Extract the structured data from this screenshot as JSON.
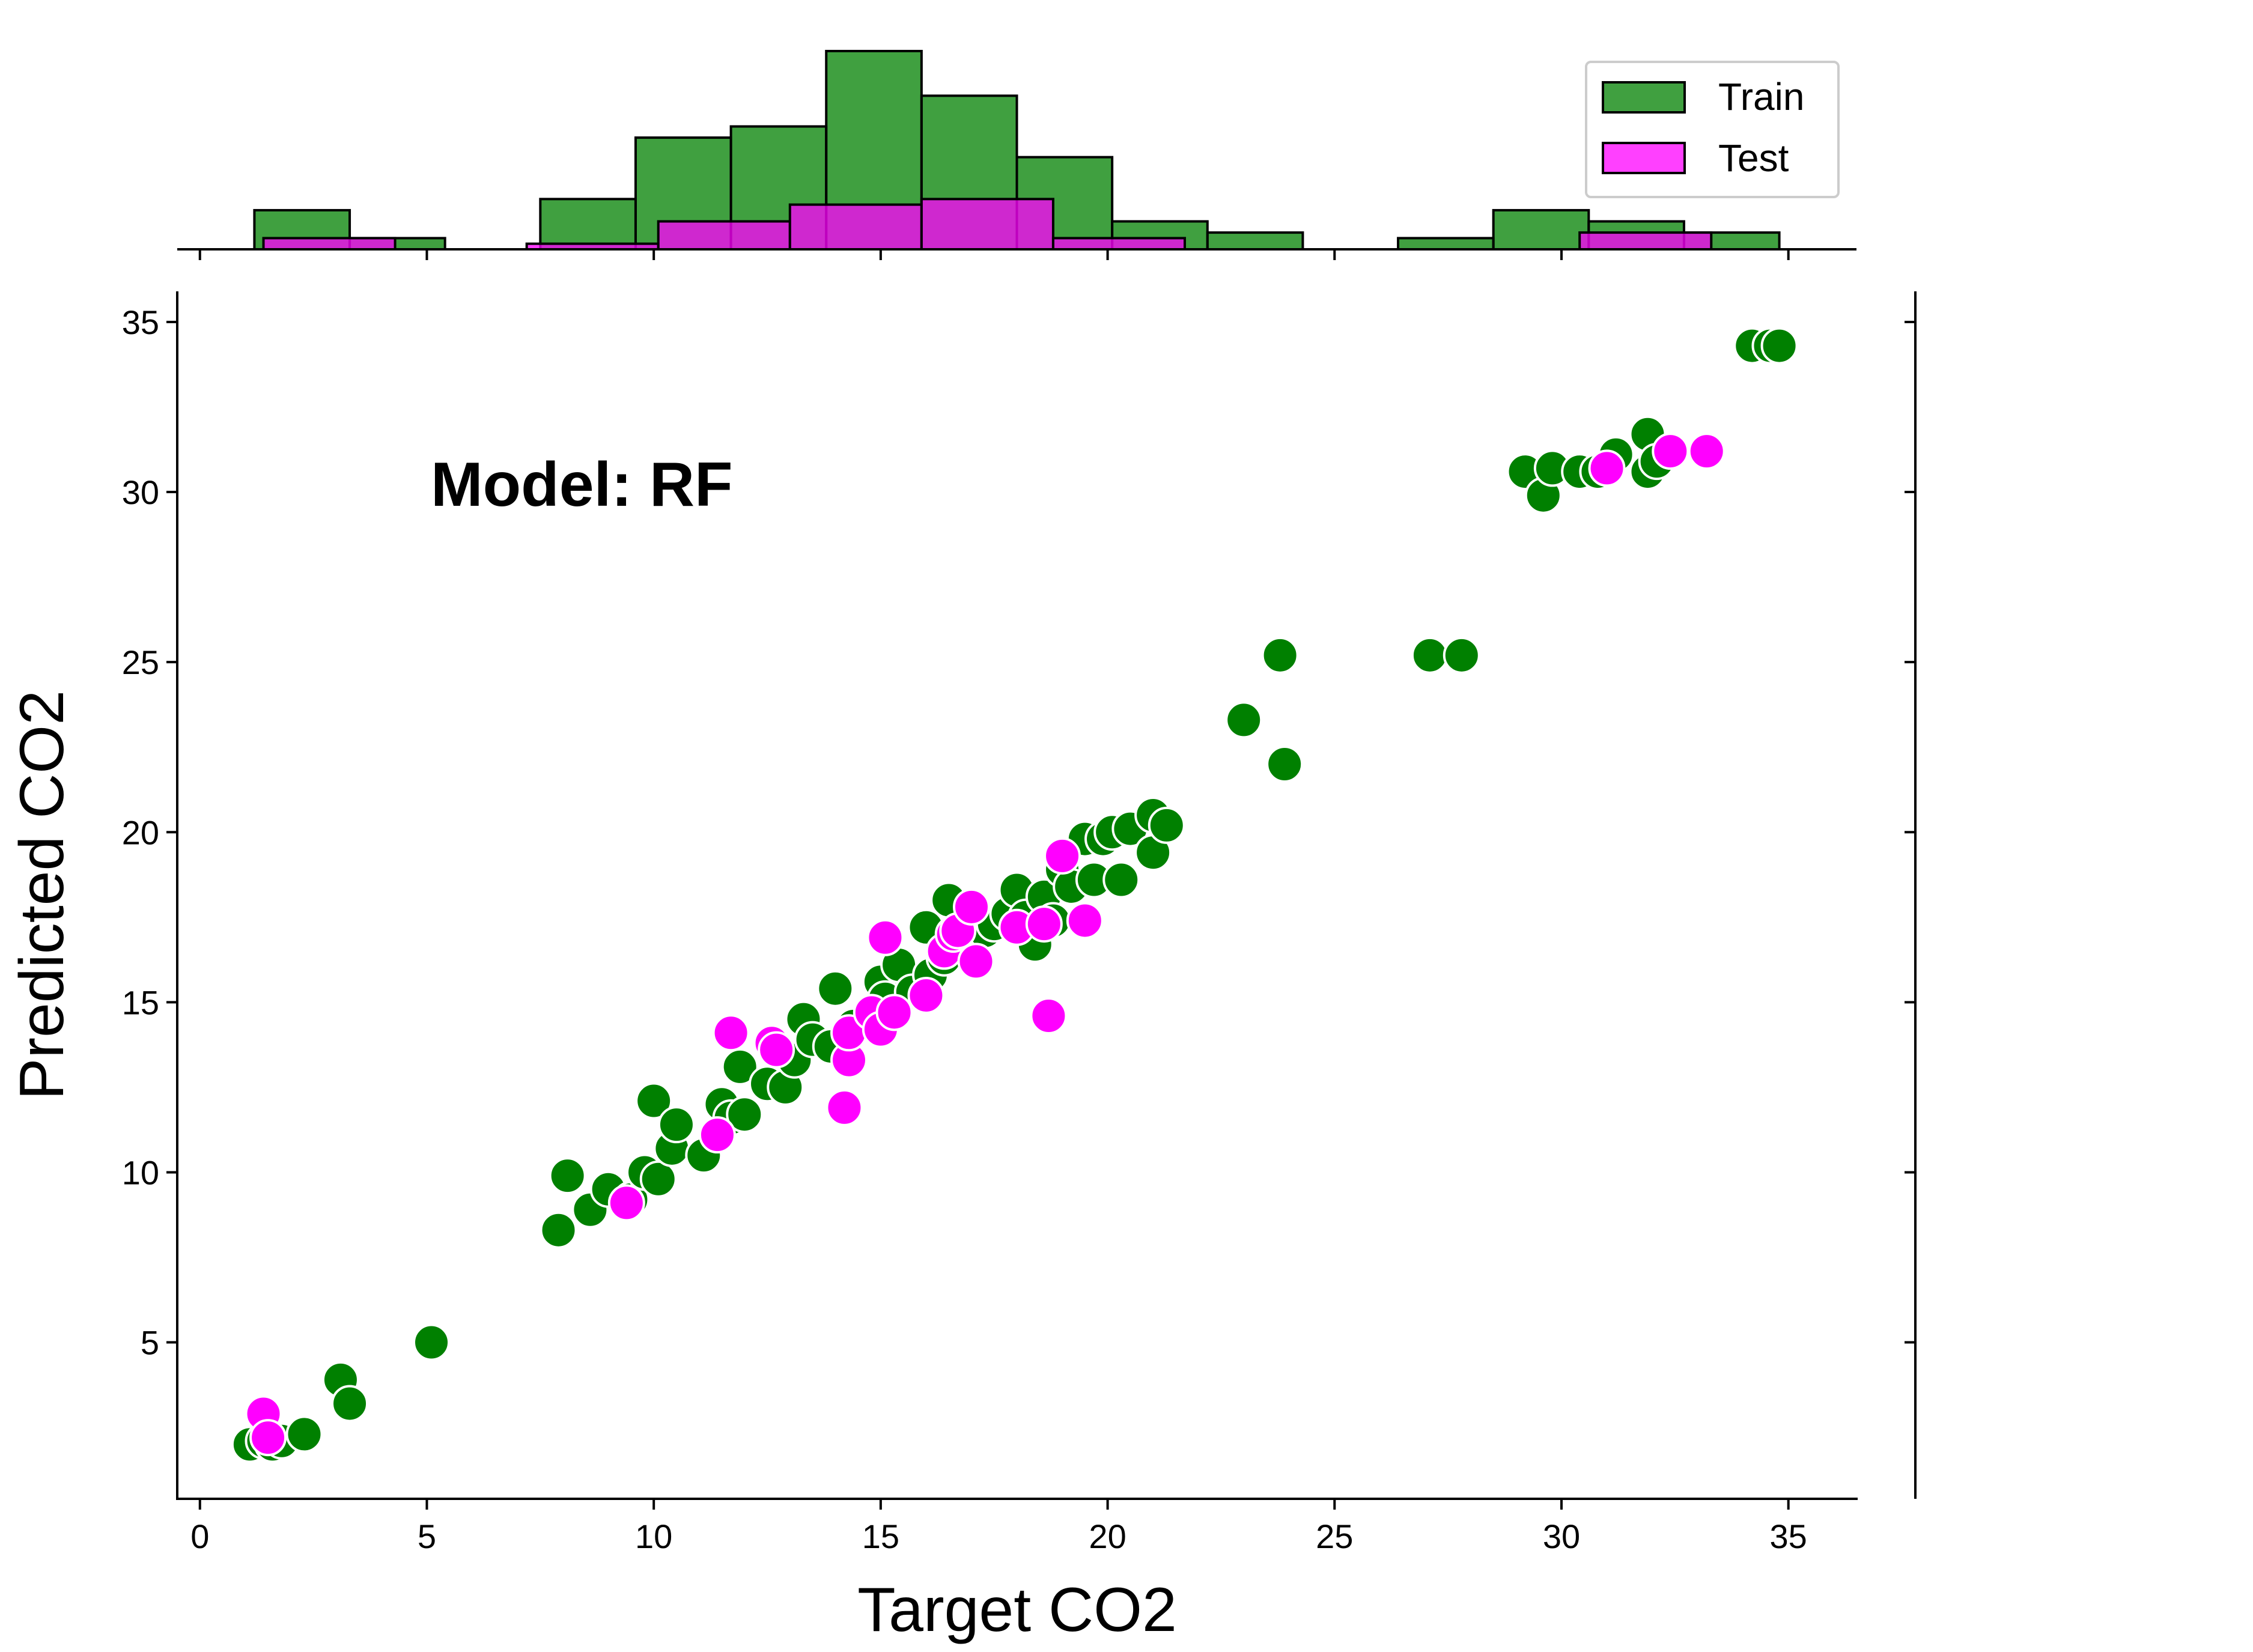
{
  "chart_data": {
    "type": "scatter",
    "annotation": "Model: RF",
    "xlabel": "Target CO2",
    "ylabel": "Predicted CO2",
    "xlim": [
      -0.5,
      36.5
    ],
    "ylim": [
      0.4,
      35.9
    ],
    "xticks": [
      0,
      5,
      10,
      15,
      20,
      25,
      30,
      35
    ],
    "yticks": [
      5,
      10,
      15,
      20,
      25,
      30,
      35
    ],
    "grid": false,
    "legend_position": "top-right",
    "colors": {
      "Train": "#008000",
      "Test": "#ff00ff",
      "point_edge": "#ffffff",
      "bar_edge": "#000000"
    },
    "series": [
      {
        "name": "Train",
        "points": [
          [
            1.1,
            2.0
          ],
          [
            1.4,
            2.1
          ],
          [
            1.6,
            2.0
          ],
          [
            1.8,
            2.1
          ],
          [
            2.3,
            2.3
          ],
          [
            3.1,
            3.9
          ],
          [
            3.3,
            3.2
          ],
          [
            5.1,
            5.0
          ],
          [
            7.9,
            8.3
          ],
          [
            8.1,
            9.9
          ],
          [
            8.6,
            8.9
          ],
          [
            9.0,
            9.5
          ],
          [
            9.5,
            9.2
          ],
          [
            9.8,
            10.0
          ],
          [
            10.0,
            12.1
          ],
          [
            10.1,
            9.8
          ],
          [
            10.4,
            10.7
          ],
          [
            10.5,
            11.4
          ],
          [
            11.1,
            10.5
          ],
          [
            11.5,
            12.0
          ],
          [
            11.7,
            11.6
          ],
          [
            11.9,
            13.1
          ],
          [
            12.0,
            11.7
          ],
          [
            12.5,
            12.6
          ],
          [
            12.7,
            13.7
          ],
          [
            12.9,
            12.5
          ],
          [
            13.1,
            13.3
          ],
          [
            13.3,
            14.5
          ],
          [
            13.5,
            13.9
          ],
          [
            13.9,
            13.7
          ],
          [
            14.0,
            15.4
          ],
          [
            14.4,
            14.3
          ],
          [
            14.8,
            14.5
          ],
          [
            15.0,
            15.6
          ],
          [
            15.1,
            15.1
          ],
          [
            15.4,
            16.1
          ],
          [
            15.7,
            15.3
          ],
          [
            16.0,
            17.2
          ],
          [
            16.1,
            15.8
          ],
          [
            16.4,
            16.3
          ],
          [
            16.5,
            18.0
          ],
          [
            16.9,
            16.9
          ],
          [
            17.3,
            17.1
          ],
          [
            17.5,
            17.3
          ],
          [
            17.8,
            17.6
          ],
          [
            18.0,
            18.3
          ],
          [
            18.2,
            17.5
          ],
          [
            18.4,
            16.7
          ],
          [
            18.6,
            18.1
          ],
          [
            18.8,
            17.4
          ],
          [
            19.0,
            18.9
          ],
          [
            19.2,
            18.4
          ],
          [
            19.5,
            19.8
          ],
          [
            19.7,
            18.6
          ],
          [
            19.9,
            19.8
          ],
          [
            20.1,
            20.0
          ],
          [
            20.3,
            18.6
          ],
          [
            20.5,
            20.1
          ],
          [
            21.0,
            20.5
          ],
          [
            21.0,
            19.4
          ],
          [
            21.3,
            20.2
          ],
          [
            23.0,
            23.3
          ],
          [
            23.8,
            25.2
          ],
          [
            23.9,
            22.0
          ],
          [
            27.1,
            25.2
          ],
          [
            27.8,
            25.2
          ],
          [
            29.2,
            30.6
          ],
          [
            29.6,
            29.9
          ],
          [
            29.8,
            30.7
          ],
          [
            30.4,
            30.6
          ],
          [
            30.8,
            30.6
          ],
          [
            31.2,
            31.1
          ],
          [
            31.9,
            31.7
          ],
          [
            31.9,
            30.6
          ],
          [
            32.1,
            30.9
          ],
          [
            34.2,
            34.3
          ],
          [
            34.6,
            34.3
          ],
          [
            34.8,
            34.3
          ]
        ]
      },
      {
        "name": "Test",
        "points": [
          [
            1.4,
            2.9
          ],
          [
            1.5,
            2.2
          ],
          [
            9.4,
            9.1
          ],
          [
            11.4,
            11.1
          ],
          [
            11.7,
            14.1
          ],
          [
            12.6,
            13.8
          ],
          [
            12.7,
            13.6
          ],
          [
            14.2,
            11.9
          ],
          [
            14.3,
            13.3
          ],
          [
            14.3,
            14.1
          ],
          [
            14.8,
            14.7
          ],
          [
            15.0,
            14.2
          ],
          [
            15.1,
            16.9
          ],
          [
            15.3,
            14.7
          ],
          [
            16.0,
            15.2
          ],
          [
            16.4,
            16.5
          ],
          [
            16.6,
            17.0
          ],
          [
            16.7,
            17.1
          ],
          [
            17.0,
            17.8
          ],
          [
            17.1,
            16.2
          ],
          [
            18.0,
            17.2
          ],
          [
            18.6,
            17.3
          ],
          [
            18.7,
            14.6
          ],
          [
            19.0,
            19.3
          ],
          [
            19.5,
            17.4
          ],
          [
            31.0,
            30.7
          ],
          [
            32.4,
            31.2
          ],
          [
            33.2,
            31.2
          ]
        ]
      }
    ],
    "histogram": {
      "type": "bar",
      "position": "top marginal",
      "series": [
        {
          "name": "Train",
          "bins": [
            [
              1.2,
              3.3,
              1.4
            ],
            [
              3.3,
              5.4,
              0.4
            ],
            [
              7.5,
              9.6,
              1.8
            ],
            [
              9.6,
              11.7,
              4.0
            ],
            [
              11.7,
              13.8,
              4.4
            ],
            [
              13.8,
              15.9,
              7.1
            ],
            [
              15.9,
              18.0,
              5.5
            ],
            [
              18.0,
              20.1,
              3.3
            ],
            [
              20.1,
              22.2,
              1.0
            ],
            [
              22.2,
              24.3,
              0.6
            ],
            [
              26.4,
              28.5,
              0.4
            ],
            [
              28.5,
              30.6,
              1.4
            ],
            [
              30.6,
              32.7,
              1.0
            ],
            [
              32.7,
              34.8,
              0.6
            ]
          ]
        },
        {
          "name": "Test",
          "bins": [
            [
              1.4,
              4.3,
              0.4
            ],
            [
              7.2,
              10.1,
              0.2
            ],
            [
              10.1,
              13.0,
              1.0
            ],
            [
              13.0,
              15.9,
              1.6
            ],
            [
              15.9,
              18.8,
              1.8
            ],
            [
              18.8,
              21.7,
              0.4
            ],
            [
              30.4,
              33.3,
              0.6
            ]
          ]
        }
      ]
    }
  }
}
